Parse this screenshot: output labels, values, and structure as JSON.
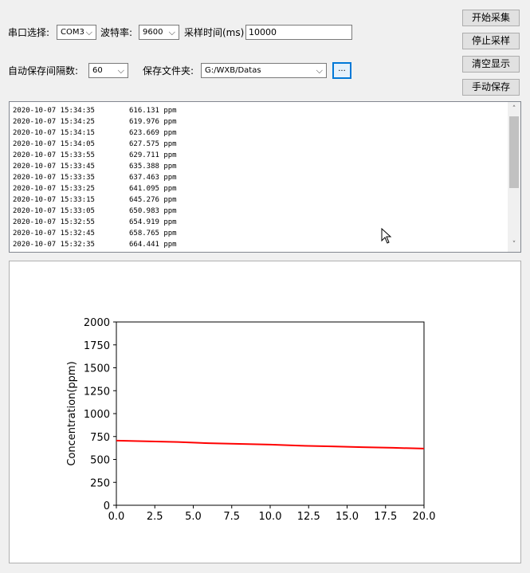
{
  "serial": {
    "port_label": "串口选择:",
    "port_value": "COM3",
    "baud_label": "波特率:",
    "baud_value": "9600",
    "interval_label": "采样时间(ms)",
    "interval_value": "10000"
  },
  "autosave": {
    "interval_label": "自动保存间隔数:",
    "interval_value": "60",
    "folder_label": "保存文件夹:",
    "folder_value": "G:/WXB/Datas",
    "browse_label": "..."
  },
  "buttons": {
    "start": "开始采集",
    "stop": "停止采样",
    "clear": "清空显示",
    "save": "手动保存"
  },
  "log": [
    {
      "time": "2020-10-07 15:34:35",
      "value": "616.131 ppm"
    },
    {
      "time": "2020-10-07 15:34:25",
      "value": "619.976 ppm"
    },
    {
      "time": "2020-10-07 15:34:15",
      "value": "623.669 ppm"
    },
    {
      "time": "2020-10-07 15:34:05",
      "value": "627.575 ppm"
    },
    {
      "time": "2020-10-07 15:33:55",
      "value": "629.711 ppm"
    },
    {
      "time": "2020-10-07 15:33:45",
      "value": "635.388 ppm"
    },
    {
      "time": "2020-10-07 15:33:35",
      "value": "637.463 ppm"
    },
    {
      "time": "2020-10-07 15:33:25",
      "value": "641.095 ppm"
    },
    {
      "time": "2020-10-07 15:33:15",
      "value": "645.276 ppm"
    },
    {
      "time": "2020-10-07 15:33:05",
      "value": "650.983 ppm"
    },
    {
      "time": "2020-10-07 15:32:55",
      "value": "654.919 ppm"
    },
    {
      "time": "2020-10-07 15:32:45",
      "value": "658.765 ppm"
    },
    {
      "time": "2020-10-07 15:32:35",
      "value": "664.441 ppm"
    }
  ],
  "chart_data": {
    "type": "line",
    "title": "",
    "xlabel": "",
    "ylabel": "Concentration(ppm)",
    "xlim": [
      0,
      20
    ],
    "ylim": [
      0,
      2000
    ],
    "xticks": [
      "0.0",
      "2.5",
      "5.0",
      "7.5",
      "10.0",
      "12.5",
      "15.0",
      "17.5",
      "20.0"
    ],
    "yticks": [
      "0",
      "250",
      "500",
      "750",
      "1000",
      "1250",
      "1500",
      "1750",
      "2000"
    ],
    "series": [
      {
        "color": "#ff0000",
        "x": [
          0,
          2,
          4,
          6,
          8,
          10,
          12,
          14,
          16,
          18,
          20
        ],
        "y": [
          705,
          698,
          690,
          677,
          670,
          662,
          650,
          642,
          634,
          627,
          618
        ]
      }
    ]
  }
}
